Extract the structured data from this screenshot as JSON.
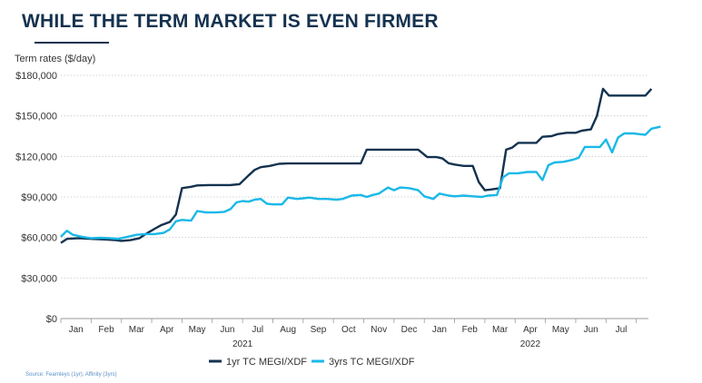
{
  "header": {
    "title": "WHILE THE TERM MARKET IS EVEN FIRMER"
  },
  "footer": {
    "source": "Source: Fearnleys (1yr), Affinity (3yrs)"
  },
  "chart_data": {
    "type": "line",
    "title": "WHILE THE TERM MARKET IS EVEN FIRMER",
    "ylabel": "Term rates ($/day)",
    "xlabel": "",
    "ylim": [
      0,
      180000
    ],
    "y_ticks": [
      0,
      30000,
      60000,
      90000,
      120000,
      150000,
      180000
    ],
    "y_tick_labels": [
      "$0",
      "$30,000",
      "$60,000",
      "$90,000",
      "$120,000",
      "$150,000",
      "$180,000"
    ],
    "x_range": [
      0,
      19.4
    ],
    "x_unit": "months since Jan 2021 (0 = start of Jan 2021)",
    "month_labels": [
      {
        "x": 0.5,
        "label": "Jan"
      },
      {
        "x": 1.5,
        "label": "Feb"
      },
      {
        "x": 2.5,
        "label": "Mar"
      },
      {
        "x": 3.5,
        "label": "Apr"
      },
      {
        "x": 4.5,
        "label": "May"
      },
      {
        "x": 5.5,
        "label": "Jun"
      },
      {
        "x": 6.5,
        "label": "Jul"
      },
      {
        "x": 7.5,
        "label": "Aug"
      },
      {
        "x": 8.5,
        "label": "Sep"
      },
      {
        "x": 9.5,
        "label": "Oct"
      },
      {
        "x": 10.5,
        "label": "Nov"
      },
      {
        "x": 11.5,
        "label": "Dec"
      },
      {
        "x": 12.5,
        "label": "Jan"
      },
      {
        "x": 13.5,
        "label": "Feb"
      },
      {
        "x": 14.5,
        "label": "Mar"
      },
      {
        "x": 15.5,
        "label": "Apr"
      },
      {
        "x": 16.5,
        "label": "May"
      },
      {
        "x": 17.5,
        "label": "Jun"
      },
      {
        "x": 18.5,
        "label": "Jul"
      }
    ],
    "year_labels": [
      {
        "x": 6.0,
        "label": "2021"
      },
      {
        "x": 15.5,
        "label": "2022"
      }
    ],
    "grid": "horizontal",
    "legend": "bottom",
    "series": [
      {
        "name": "1yr TC MEGI/XDF",
        "color": "#14324f",
        "points": [
          [
            0.0,
            56000
          ],
          [
            0.2,
            59000
          ],
          [
            0.6,
            59500
          ],
          [
            1.0,
            59000
          ],
          [
            1.5,
            58500
          ],
          [
            1.8,
            58000
          ],
          [
            2.0,
            57500
          ],
          [
            2.3,
            58000
          ],
          [
            2.6,
            59500
          ],
          [
            2.8,
            62500
          ],
          [
            3.1,
            66500
          ],
          [
            3.3,
            69000
          ],
          [
            3.6,
            71500
          ],
          [
            3.8,
            77000
          ],
          [
            4.0,
            96500
          ],
          [
            4.3,
            97500
          ],
          [
            4.5,
            98500
          ],
          [
            4.9,
            98800
          ],
          [
            5.3,
            98800
          ],
          [
            5.6,
            98800
          ],
          [
            5.9,
            99500
          ],
          [
            6.2,
            106000
          ],
          [
            6.4,
            110000
          ],
          [
            6.6,
            112000
          ],
          [
            6.9,
            113000
          ],
          [
            7.2,
            114500
          ],
          [
            7.5,
            114800
          ],
          [
            8.5,
            114800
          ],
          [
            9.5,
            114800
          ],
          [
            9.9,
            114800
          ],
          [
            10.1,
            125000
          ],
          [
            10.5,
            125000
          ],
          [
            11.0,
            125000
          ],
          [
            11.5,
            125000
          ],
          [
            11.8,
            125000
          ],
          [
            12.1,
            119500
          ],
          [
            12.4,
            119500
          ],
          [
            12.6,
            118500
          ],
          [
            12.8,
            115000
          ],
          [
            13.0,
            114000
          ],
          [
            13.3,
            113000
          ],
          [
            13.6,
            113000
          ],
          [
            13.8,
            101000
          ],
          [
            14.0,
            95000
          ],
          [
            14.2,
            95500
          ],
          [
            14.5,
            96500
          ],
          [
            14.7,
            125000
          ],
          [
            14.9,
            126500
          ],
          [
            15.1,
            130000
          ],
          [
            15.4,
            130000
          ],
          [
            15.7,
            130000
          ],
          [
            15.9,
            134500
          ],
          [
            16.2,
            135000
          ],
          [
            16.4,
            136500
          ],
          [
            16.7,
            137500
          ],
          [
            17.0,
            137500
          ],
          [
            17.2,
            139000
          ],
          [
            17.5,
            140000
          ],
          [
            17.7,
            150000
          ],
          [
            17.9,
            170000
          ],
          [
            18.1,
            165000
          ],
          [
            18.5,
            165000
          ],
          [
            19.0,
            165000
          ],
          [
            19.3,
            165000
          ],
          [
            19.5,
            170000
          ]
        ]
      },
      {
        "name": "3yrs TC MEGI/XDF",
        "color": "#1ab8e8",
        "points": [
          [
            0.0,
            60500
          ],
          [
            0.2,
            65000
          ],
          [
            0.4,
            62000
          ],
          [
            0.7,
            60500
          ],
          [
            1.0,
            59500
          ],
          [
            1.3,
            59800
          ],
          [
            1.6,
            59500
          ],
          [
            1.9,
            59000
          ],
          [
            2.2,
            60500
          ],
          [
            2.5,
            62000
          ],
          [
            2.8,
            62500
          ],
          [
            3.1,
            62500
          ],
          [
            3.4,
            63500
          ],
          [
            3.6,
            66000
          ],
          [
            3.8,
            72000
          ],
          [
            4.0,
            73000
          ],
          [
            4.3,
            72500
          ],
          [
            4.5,
            79500
          ],
          [
            4.8,
            78500
          ],
          [
            5.1,
            78500
          ],
          [
            5.4,
            79000
          ],
          [
            5.6,
            81000
          ],
          [
            5.8,
            86000
          ],
          [
            6.0,
            87000
          ],
          [
            6.2,
            86500
          ],
          [
            6.4,
            88000
          ],
          [
            6.6,
            88500
          ],
          [
            6.8,
            85000
          ],
          [
            7.0,
            84500
          ],
          [
            7.3,
            84500
          ],
          [
            7.5,
            89500
          ],
          [
            7.8,
            88500
          ],
          [
            8.0,
            89000
          ],
          [
            8.2,
            89500
          ],
          [
            8.5,
            88500
          ],
          [
            8.8,
            88500
          ],
          [
            9.1,
            88000
          ],
          [
            9.3,
            88500
          ],
          [
            9.6,
            91000
          ],
          [
            9.9,
            91500
          ],
          [
            10.1,
            90000
          ],
          [
            10.3,
            91500
          ],
          [
            10.5,
            92500
          ],
          [
            10.8,
            97000
          ],
          [
            11.0,
            95000
          ],
          [
            11.2,
            97000
          ],
          [
            11.5,
            96500
          ],
          [
            11.8,
            95000
          ],
          [
            12.0,
            90500
          ],
          [
            12.3,
            88500
          ],
          [
            12.5,
            92500
          ],
          [
            12.8,
            91000
          ],
          [
            13.0,
            90500
          ],
          [
            13.3,
            91000
          ],
          [
            13.6,
            90500
          ],
          [
            13.9,
            90000
          ],
          [
            14.1,
            91000
          ],
          [
            14.4,
            91500
          ],
          [
            14.6,
            104500
          ],
          [
            14.8,
            107500
          ],
          [
            15.1,
            107500
          ],
          [
            15.4,
            108500
          ],
          [
            15.7,
            108500
          ],
          [
            15.9,
            102500
          ],
          [
            16.1,
            113500
          ],
          [
            16.3,
            115500
          ],
          [
            16.6,
            116000
          ],
          [
            16.9,
            117500
          ],
          [
            17.1,
            119000
          ],
          [
            17.3,
            127000
          ],
          [
            17.6,
            127000
          ],
          [
            17.8,
            127000
          ],
          [
            18.0,
            132500
          ],
          [
            18.2,
            123000
          ],
          [
            18.4,
            134000
          ],
          [
            18.6,
            137000
          ],
          [
            18.9,
            137000
          ],
          [
            19.1,
            136500
          ],
          [
            19.3,
            136000
          ],
          [
            19.5,
            140500
          ],
          [
            19.6,
            141000
          ],
          [
            19.8,
            142000
          ]
        ]
      }
    ]
  }
}
